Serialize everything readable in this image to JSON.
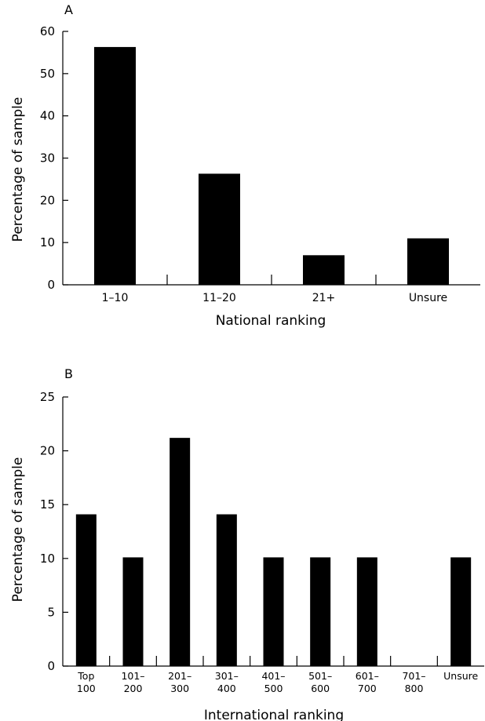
{
  "chart_data": [
    {
      "type": "bar",
      "panel_label": "A",
      "categories": [
        "1–10",
        "11–20",
        "21+",
        "Unsure"
      ],
      "values": [
        56.3,
        26.3,
        7,
        11
      ],
      "xlabel": "National ranking",
      "ylabel": "Percentage of sample",
      "ylim": [
        0,
        60
      ],
      "yticks": [
        "0",
        "10",
        "20",
        "30",
        "40",
        "50",
        "60"
      ],
      "grid": false,
      "bar_color": "#000000"
    },
    {
      "type": "bar",
      "panel_label": "B",
      "categories": [
        [
          "Top",
          "100"
        ],
        [
          "101–",
          "200"
        ],
        [
          "201–",
          "300"
        ],
        [
          "301–",
          "400"
        ],
        [
          "401–",
          "500"
        ],
        [
          "501–",
          "600"
        ],
        [
          "601–",
          "700"
        ],
        [
          "701–",
          "800"
        ],
        [
          "Unsure"
        ]
      ],
      "values": [
        14.1,
        10.1,
        21.2,
        14.1,
        10.1,
        10.1,
        10.1,
        0,
        10.1
      ],
      "xlabel": "International ranking",
      "ylabel": "Percentage of sample",
      "ylim": [
        0,
        25
      ],
      "yticks": [
        "0",
        "5",
        "10",
        "15",
        "20",
        "25"
      ],
      "grid": false,
      "bar_color": "#000000"
    }
  ]
}
